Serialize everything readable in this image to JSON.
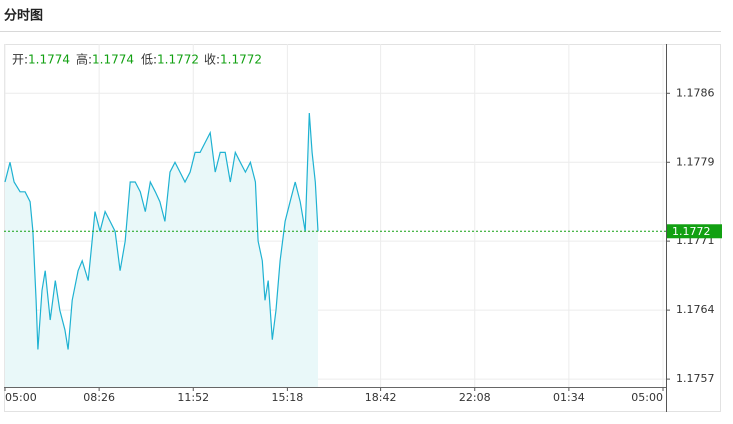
{
  "header": {
    "title": "分时图"
  },
  "chart_data": {
    "type": "line",
    "ohlc": [
      {
        "label": "开:",
        "value": 1.1774
      },
      {
        "label": "高:",
        "value": 1.1774
      },
      {
        "label": "低:",
        "value": 1.1772
      },
      {
        "label": "收:",
        "value": 1.1772
      }
    ],
    "x": [
      0,
      11,
      20,
      33,
      44,
      55,
      61,
      68,
      72,
      81,
      88,
      99,
      110,
      120,
      131,
      138,
      147,
      160,
      169,
      182,
      197,
      208,
      219,
      230,
      241,
      252,
      263,
      274,
      285,
      296,
      307,
      318,
      329,
      339,
      350,
      361,
      372,
      383,
      394,
      405,
      416,
      427,
      438,
      449,
      460,
      471,
      482,
      493,
      504,
      515,
      526,
      537,
      548,
      554,
      563,
      569,
      576,
      585,
      593,
      602,
      613,
      624,
      635,
      646,
      657,
      666,
      672,
      679,
      685
    ],
    "values": [
      1.1777,
      1.1779,
      1.1777,
      1.1776,
      1.1776,
      1.1775,
      1.1772,
      1.1765,
      1.176,
      1.1766,
      1.1768,
      1.1763,
      1.1767,
      1.1764,
      1.1762,
      1.176,
      1.1765,
      1.1768,
      1.1769,
      1.1767,
      1.1774,
      1.1772,
      1.1774,
      1.1773,
      1.1772,
      1.1768,
      1.1771,
      1.1777,
      1.1777,
      1.1776,
      1.1774,
      1.1777,
      1.1776,
      1.1775,
      1.1773,
      1.1778,
      1.1779,
      1.1778,
      1.1777,
      1.1778,
      1.178,
      1.178,
      1.1781,
      1.1782,
      1.1778,
      1.178,
      1.178,
      1.1777,
      1.178,
      1.1779,
      1.1778,
      1.1779,
      1.1777,
      1.1771,
      1.1769,
      1.1765,
      1.1767,
      1.1761,
      1.1764,
      1.1769,
      1.1773,
      1.1775,
      1.1777,
      1.1775,
      1.1772,
      1.1784,
      1.178,
      1.1777,
      1.1772
    ],
    "color": "#1fb2d2",
    "area_color": "#e9f8f9",
    "last_color": "#12a012",
    "xlim": [
      0,
      1440
    ],
    "xticks": [
      {
        "value": 0,
        "label": "05:00"
      },
      {
        "value": 206,
        "label": "08:26"
      },
      {
        "value": 412,
        "label": "11:52"
      },
      {
        "value": 618,
        "label": "15:18"
      },
      {
        "value": 822,
        "label": "18:42"
      },
      {
        "value": 1028,
        "label": "22:08"
      },
      {
        "value": 1234,
        "label": "01:34"
      },
      {
        "value": 1440,
        "label": "05:00"
      }
    ],
    "ylim": [
      1.17562,
      1.1791
    ],
    "yticks": [
      1.1757,
      1.1764,
      1.1771,
      1.1779,
      1.1786
    ],
    "grid": true
  }
}
